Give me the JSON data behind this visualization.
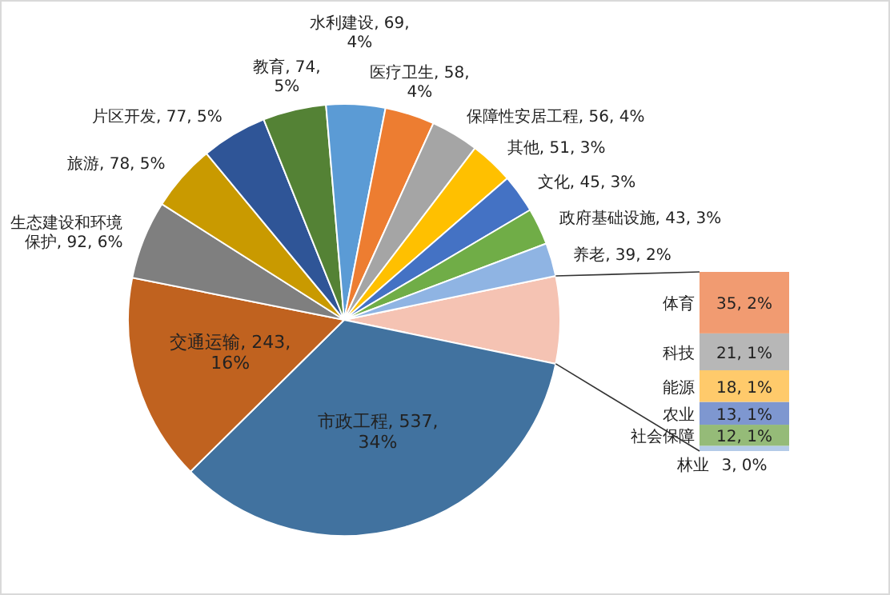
{
  "chart_data": [
    {
      "type": "pie",
      "categories": [
        null,
        "市政工程",
        "交通运输",
        "生态建设和环境保护",
        "旅游",
        "片区开发",
        "教育",
        "水利建设",
        "医疗卫生",
        "保障性安居工程",
        "其他",
        "文化",
        "政府基础设施",
        "养老"
      ],
      "values": [
        102,
        537,
        243,
        92,
        78,
        77,
        74,
        69,
        58,
        56,
        51,
        45,
        43,
        39
      ],
      "value_labels": [
        null,
        ", 537, 34%",
        ", 243, 16%",
        ", 92, 6%",
        ", 78, 5%",
        ", 77, 5%",
        ", 74, 5%",
        ", 69, 4%",
        ", 58, 4%",
        ", 56, 4%",
        ", 51, 3%",
        ", 45, 3%",
        ", 43, 3%",
        ", 39, 2%"
      ],
      "colors": [
        "#f5c3b3",
        "#41729f",
        "#c0621f",
        "#7f7f7f",
        "#c99a00",
        "#2f5597",
        "#548235",
        "#5b9bd5",
        "#ed7d31",
        "#a5a5a5",
        "#ffc000",
        "#4472c4",
        "#70ad47",
        "#8fb4e3"
      ]
    },
    {
      "type": "bar",
      "stacked": true,
      "categories": [
        null
      ],
      "series": [
        {
          "name": "林业",
          "color": "#b4cbe8",
          "values": [
            3
          ],
          "value_labels": [
            "3, 0%"
          ]
        },
        {
          "name": "社会保障",
          "color": "#95bb78",
          "values": [
            12
          ],
          "value_labels": [
            "12, 1%"
          ]
        },
        {
          "name": "农业",
          "color": "#7e97d0",
          "values": [
            13
          ],
          "value_labels": [
            "13, 1%"
          ]
        },
        {
          "name": "能源",
          "color": "#ffca6b",
          "values": [
            18
          ],
          "value_labels": [
            "18, 1%"
          ]
        },
        {
          "name": "科技",
          "color": "#b7b7b7",
          "values": [
            21
          ],
          "value_labels": [
            "21, 1%"
          ]
        },
        {
          "name": "体育",
          "color": "#f19b71",
          "values": [
            35
          ],
          "value_labels": [
            "35, 2%"
          ]
        }
      ]
    }
  ]
}
